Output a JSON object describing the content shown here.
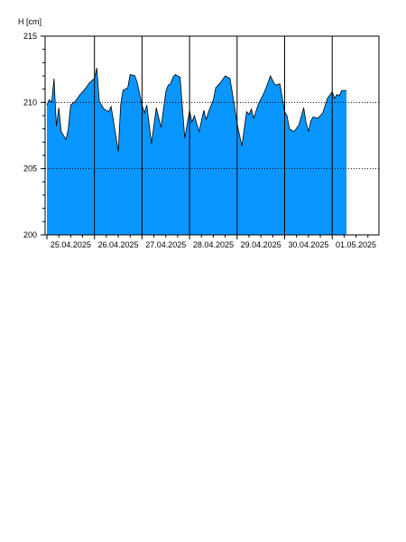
{
  "chart_data": {
    "type": "area",
    "ylabel": "H [cm]",
    "ylim": [
      200,
      215
    ],
    "yticks": [
      200,
      205,
      210,
      215
    ],
    "dotted_gridlines_y": [
      205,
      210
    ],
    "day_labels": [
      "25.04.2025",
      "26.04.2025",
      "27.04.2025",
      "28.04.2025",
      "29.04.2025",
      "30.04.2025",
      "01.05.2025"
    ],
    "x_range_days": [
      0,
      6.9
    ],
    "fill_color": "#0a96ff",
    "line_color": "#000000",
    "series": [
      {
        "x": [
          0,
          0.05,
          0.1,
          0.15,
          0.2,
          0.25,
          0.3,
          0.4,
          0.45,
          0.5,
          0.6,
          0.7,
          0.8,
          0.9,
          1.0,
          1.05,
          1.1,
          1.2,
          1.3,
          1.35,
          1.4,
          1.5,
          1.55,
          1.6,
          1.7,
          1.75,
          1.85,
          1.9,
          2.0,
          2.05,
          2.1,
          2.2,
          2.3,
          2.4,
          2.5,
          2.55,
          2.6,
          2.65,
          2.7,
          2.8,
          2.9,
          3.0,
          3.05,
          3.1,
          3.2,
          3.3,
          3.35,
          3.4,
          3.5,
          3.55,
          3.6,
          3.65,
          3.75,
          3.85,
          3.95,
          4.0,
          4.1,
          4.2,
          4.25,
          4.3,
          4.35,
          4.45,
          4.55,
          4.6,
          4.7,
          4.8,
          4.9,
          5.0,
          5.05,
          5.1,
          5.2,
          5.3,
          5.4,
          5.45,
          5.5,
          5.55,
          5.6,
          5.7,
          5.8,
          5.9,
          6.0,
          6.05,
          6.1,
          6.15,
          6.2,
          6.3
        ],
        "values": [
          209.8,
          210.2,
          210.0,
          211.8,
          208.2,
          209.6,
          207.8,
          207.2,
          208.0,
          209.8,
          210.1,
          210.6,
          211.0,
          211.5,
          211.8,
          212.6,
          210.1,
          209.5,
          209.3,
          209.7,
          208.6,
          206.3,
          209.8,
          210.9,
          211.1,
          212.1,
          212.0,
          211.5,
          209.8,
          209.2,
          209.8,
          206.9,
          209.6,
          208.1,
          210.8,
          211.3,
          211.4,
          211.9,
          212.1,
          211.9,
          207.3,
          209.4,
          208.5,
          209.0,
          207.8,
          209.4,
          208.7,
          209.3,
          210.2,
          211.1,
          211.3,
          211.5,
          212.0,
          211.8,
          209.6,
          208.4,
          206.7,
          209.3,
          209.1,
          209.5,
          208.8,
          209.9,
          210.6,
          211.0,
          212.0,
          211.3,
          211.4,
          209.3,
          209.0,
          208.0,
          207.8,
          208.3,
          209.6,
          208.5,
          207.8,
          208.6,
          208.9,
          208.8,
          209.2,
          210.3,
          210.8,
          210.3,
          210.6,
          210.5,
          210.9,
          210.9
        ]
      }
    ]
  }
}
